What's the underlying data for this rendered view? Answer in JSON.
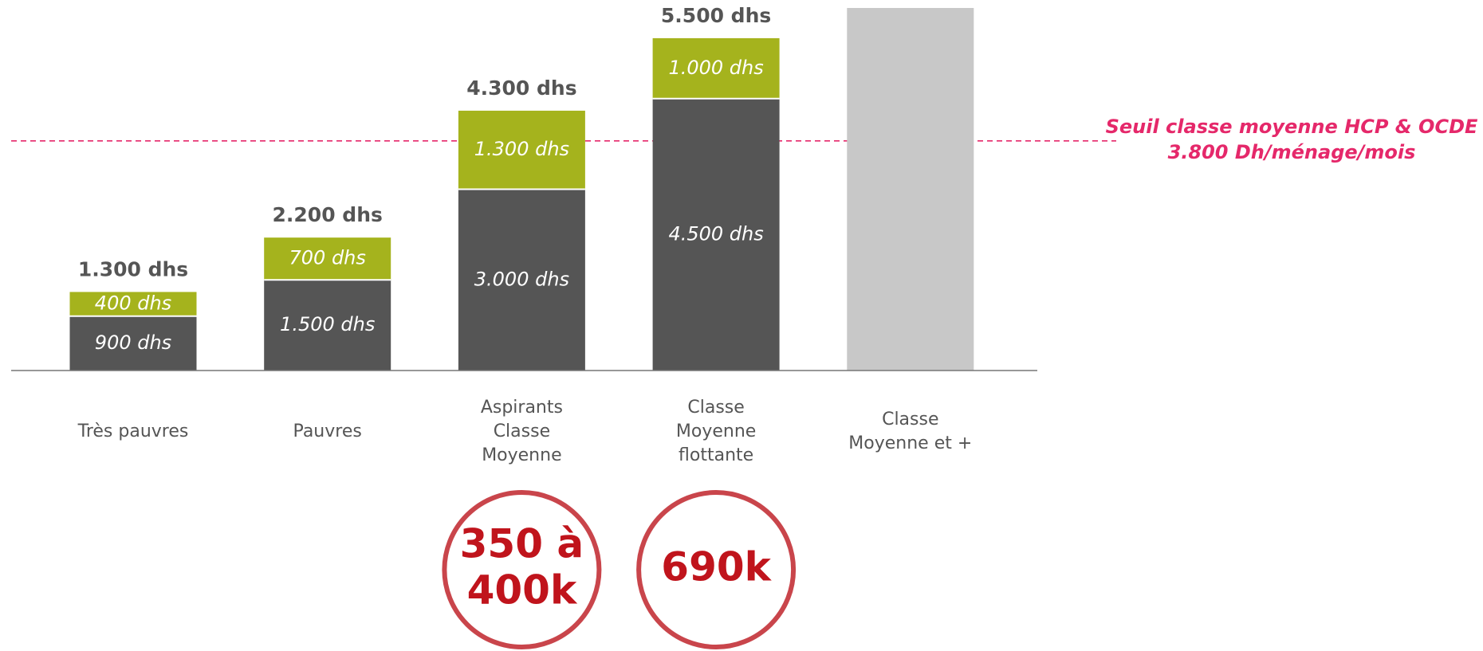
{
  "chart_data": {
    "type": "stacked-bar",
    "categories": [
      [
        "Très pauvres"
      ],
      [
        "Pauvres"
      ],
      [
        "Aspirants",
        "Classe",
        "Moyenne"
      ],
      [
        "Classe",
        "Moyenne",
        "flottante"
      ],
      [
        "Classe",
        "Moyenne et +"
      ]
    ],
    "series": [
      {
        "color": "#555555",
        "values": [
          900,
          1500,
          3000,
          4500,
          null
        ],
        "value_labels": [
          "900 dhs",
          "1.500 dhs",
          "3.000 dhs",
          "4.500 dhs",
          null
        ]
      },
      {
        "color": "#a5b31d",
        "values": [
          400,
          700,
          1300,
          1000,
          null
        ],
        "value_labels": [
          "400 dhs",
          "700 dhs",
          "1.300 dhs",
          "1.000 dhs",
          null
        ]
      },
      {
        "color": "#c8c8c8",
        "values": [
          null,
          null,
          null,
          null,
          6000
        ]
      }
    ],
    "totals": {
      "values": [
        1300,
        2200,
        4300,
        5500,
        null
      ],
      "value_labels": [
        "1.300 dhs",
        "2.200 dhs",
        "4.300 dhs",
        "5.500 dhs",
        null
      ]
    },
    "threshold": {
      "value": 3800,
      "color": "#e5286a",
      "label": [
        "Seuil classe moyenne HCP & OCDE",
        "3.800 Dh/ménage/mois"
      ]
    },
    "circle_labels": [
      null,
      null,
      [
        "350 à",
        "400k"
      ],
      [
        "690k"
      ],
      null
    ],
    "ylim": [
      0,
      6000
    ]
  }
}
